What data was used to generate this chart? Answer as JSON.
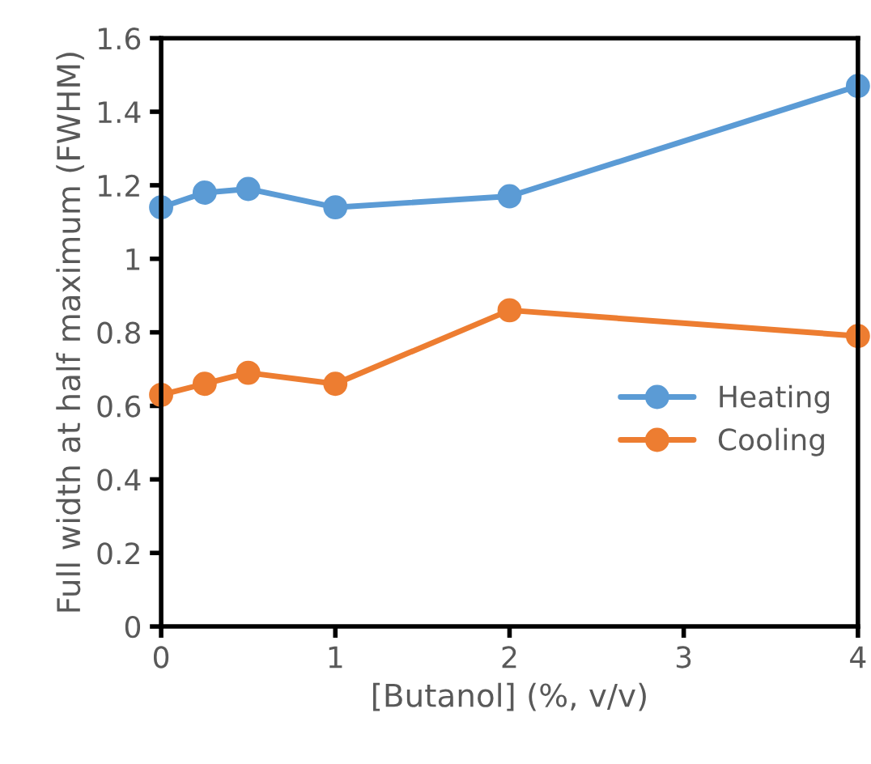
{
  "chart_data": {
    "type": "line",
    "xlabel": "[Butanol] (%, v/v)",
    "ylabel": "Full width at half maximum (FWHM)",
    "x": [
      0,
      0.25,
      0.5,
      1,
      2,
      4
    ],
    "series": [
      {
        "name": "Heating",
        "color": "#5b9bd5",
        "values": [
          1.14,
          1.18,
          1.19,
          1.14,
          1.17,
          1.47
        ]
      },
      {
        "name": "Cooling",
        "color": "#ed7d31",
        "values": [
          0.63,
          0.66,
          0.69,
          0.66,
          0.86,
          0.79
        ]
      }
    ],
    "xlim": [
      0,
      4
    ],
    "xticks": [
      0,
      1,
      2,
      3,
      4
    ],
    "ylim": [
      0,
      1.6
    ],
    "yticks": [
      0,
      {
        "value": 0.2,
        "label": "0.2"
      },
      {
        "value": 0.4,
        "label": "0.4"
      },
      {
        "value": 0.6,
        "label": "0.6"
      },
      {
        "value": 0.8,
        "label": "0.8"
      },
      1,
      {
        "value": 1.2,
        "label": "1.2"
      },
      {
        "value": 1.4,
        "label": "1.4"
      },
      {
        "value": 1.6,
        "label": "1.6"
      }
    ],
    "marker": "circle",
    "line_style": "solid",
    "grid": false,
    "legend": "right"
  }
}
